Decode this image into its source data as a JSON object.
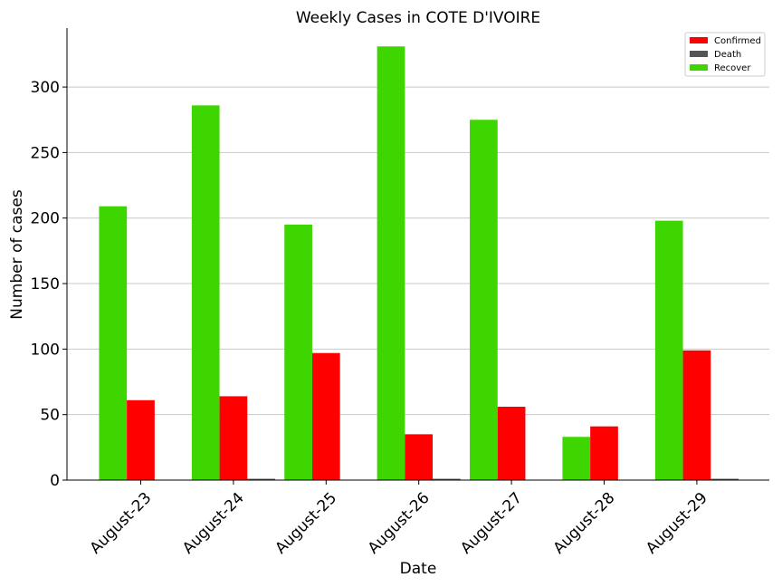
{
  "chart_data": {
    "type": "bar",
    "title": "Weekly Cases in COTE D'IVOIRE",
    "xlabel": "Date",
    "ylabel": "Number of cases",
    "categories": [
      "August-23",
      "August-24",
      "August-25",
      "August-26",
      "August-27",
      "August-28",
      "August-29"
    ],
    "series": [
      {
        "name": "Recover",
        "color": "#3dd600",
        "values": [
          209,
          286,
          195,
          331,
          275,
          33,
          198
        ]
      },
      {
        "name": "Confirmed",
        "color": "#ff0000",
        "values": [
          61,
          64,
          97,
          35,
          56,
          41,
          99
        ]
      },
      {
        "name": "Death",
        "color": "#555555",
        "values": [
          0,
          1,
          0,
          1,
          0,
          0,
          1
        ]
      }
    ],
    "legend_order": [
      "Confirmed",
      "Death",
      "Recover"
    ],
    "ylim": [
      0,
      345
    ],
    "yticks": [
      0,
      50,
      100,
      150,
      200,
      250,
      300
    ],
    "grid": "horizontal",
    "legend_position": "top-right"
  }
}
